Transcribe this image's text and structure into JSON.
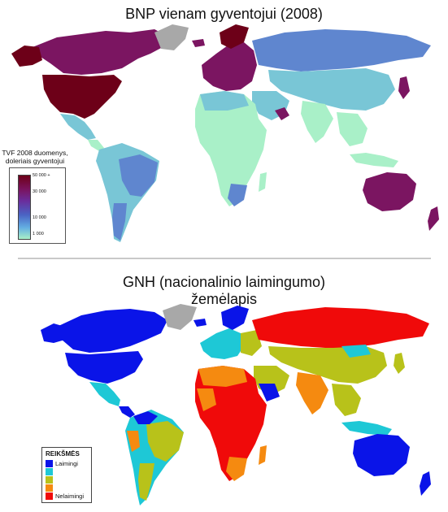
{
  "top": {
    "title": "BNP vienam gyventojui (2008)",
    "legend": {
      "title": "TVF 2008 duomenys, doleriais gyventojui",
      "ticks": [
        "50 000 +",
        "30 000",
        "10 000",
        "1 000"
      ]
    },
    "colors": {
      "very_high": "#6d0018",
      "high": "#7b1561",
      "upper": "#5b3aa8",
      "middle": "#5f86cf",
      "lower": "#79c6d6",
      "low": "#a9f0c8",
      "no_data": "#a8a8a8"
    }
  },
  "bottom": {
    "title_line1": "GNH (nacionalinio laimingumo)",
    "title_line2": "žemėlapis",
    "legend": {
      "title": "REIKŠMĖS",
      "items": [
        {
          "label": "Laimingi",
          "color": "#0a14e8"
        },
        {
          "label": "",
          "color": "#1ec8d6"
        },
        {
          "label": "",
          "color": "#b8c21a"
        },
        {
          "label": "",
          "color": "#f58a10"
        },
        {
          "label": "Nelaimingi",
          "color": "#f00a0a"
        }
      ]
    },
    "colors": {
      "happy": "#0a14e8",
      "fairly_happy": "#1ec8d6",
      "neutral": "#b8c21a",
      "fairly_unhappy": "#f58a10",
      "unhappy": "#f00a0a",
      "no_data": "#a8a8a8"
    }
  }
}
